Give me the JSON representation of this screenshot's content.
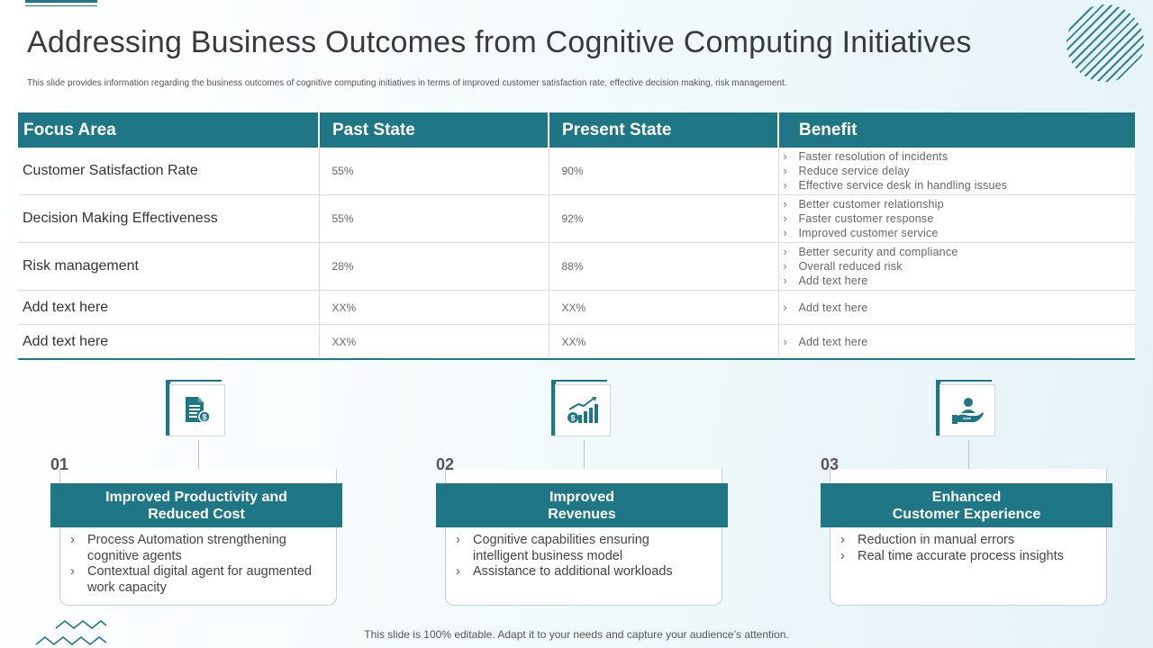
{
  "title": "Addressing Business Outcomes from Cognitive Computing Initiatives",
  "subtitle": "This slide provides information regarding the business outcomes of cognitive computing initiatives in terms of improved customer satisfaction rate, effective decision making, risk management.",
  "table": {
    "headers": [
      "Focus Area",
      "Past State",
      "Present State",
      "Benefit"
    ],
    "rows": [
      {
        "focus": "Customer Satisfaction Rate",
        "past": "55%",
        "present": "90%",
        "benefits": [
          "Faster resolution of incidents",
          "Reduce service delay",
          "Effective service desk in handling issues"
        ]
      },
      {
        "focus": "Decision Making Effectiveness",
        "past": "55%",
        "present": "92%",
        "benefits": [
          "Better customer relationship",
          "Faster customer response",
          "Improved customer service"
        ]
      },
      {
        "focus": "Risk management",
        "past": "28%",
        "present": "88%",
        "benefits": [
          "Better security and compliance",
          "Overall reduced risk",
          "Add text here"
        ]
      },
      {
        "focus": "Add text here",
        "past": "XX%",
        "present": "XX%",
        "benefits": [
          "Add text here"
        ]
      },
      {
        "focus": "Add text here",
        "past": "XX%",
        "present": "XX%",
        "benefits": [
          "Add text here"
        ]
      }
    ]
  },
  "cards": [
    {
      "number": "01",
      "title_line1": "Improved Productivity and",
      "title_line2": "Reduced Cost",
      "icon": "document-money-icon",
      "points": [
        "Process Automation strengthening cognitive agents",
        "Contextual digital agent for augmented work capacity"
      ]
    },
    {
      "number": "02",
      "title_line1": "Improved",
      "title_line2": "Revenues",
      "icon": "revenue-growth-chart-icon",
      "points": [
        "Cognitive capabilities ensuring intelligent business model",
        "Assistance to additional workloads"
      ]
    },
    {
      "number": "03",
      "title_line1": "Enhanced",
      "title_line2": "Customer Experience",
      "icon": "customer-care-hand-icon",
      "points": [
        "Reduction in manual errors",
        "Real time accurate process insights"
      ]
    }
  ],
  "footer": "This slide is 100% editable. Adapt it to your needs and capture your audience’s attention.",
  "colors": {
    "accent": "#1f7684"
  }
}
